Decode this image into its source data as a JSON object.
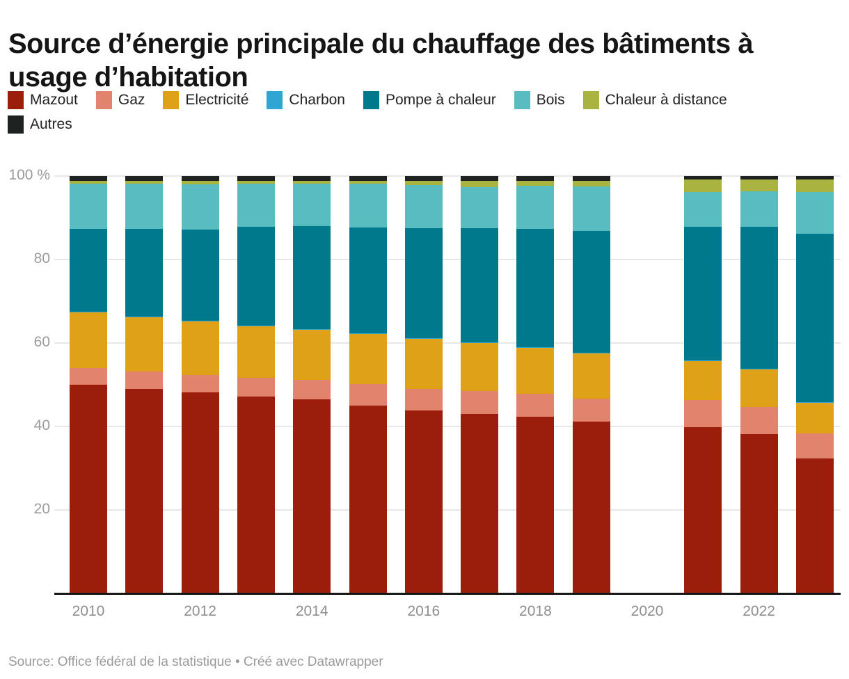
{
  "header": {
    "title_lines": [
      "Source d’énergie principale du chauffage des bâtiments à",
      "usage d’habitation"
    ]
  },
  "chart_data": {
    "type": "bar",
    "stacked": true,
    "unit": "%",
    "title": "Source d’énergie principale du chauffage des bâtiments à usage d’habitation",
    "categories": [
      "2010",
      "2011",
      "2012",
      "2013",
      "2014",
      "2015",
      "2016",
      "2017",
      "2018",
      "2019",
      "2020",
      "2021",
      "2022",
      "2023"
    ],
    "series": [
      {
        "name": "Mazout",
        "color": "#9b1e0d",
        "values": [
          50.0,
          49.0,
          48.1,
          47.2,
          46.5,
          45.0,
          43.9,
          43.0,
          42.3,
          41.2,
          null,
          39.8,
          38.2,
          32.4
        ]
      },
      {
        "name": "Gaz",
        "color": "#e2836e",
        "values": [
          4.0,
          4.2,
          4.2,
          4.5,
          4.6,
          5.1,
          5.1,
          5.5,
          5.5,
          5.4,
          null,
          6.5,
          6.4,
          6.0
        ]
      },
      {
        "name": "Electricité",
        "color": "#dfa118",
        "values": [
          13.3,
          12.9,
          12.9,
          12.3,
          12.1,
          12.0,
          12.0,
          11.5,
          11.1,
          11.0,
          null,
          9.4,
          9.1,
          7.4
        ]
      },
      {
        "name": "Charbon",
        "color": "#2fa5d3",
        "values": [
          0.2,
          0.2,
          0.2,
          0.2,
          0.2,
          0.2,
          0.2,
          0.1,
          0.1,
          0.1,
          null,
          0.1,
          0.1,
          0.1
        ]
      },
      {
        "name": "Pompe à chaleur",
        "color": "#00798c",
        "values": [
          19.9,
          21.1,
          21.8,
          23.7,
          24.6,
          25.4,
          26.3,
          27.4,
          28.4,
          29.2,
          null,
          32.1,
          34.0,
          40.2
        ]
      },
      {
        "name": "Bois",
        "color": "#58bcc1",
        "values": [
          10.8,
          10.8,
          10.8,
          10.3,
          10.2,
          10.4,
          10.4,
          9.9,
          10.2,
          10.6,
          null,
          8.3,
          8.5,
          10.0
        ]
      },
      {
        "name": "Chaleur à distance",
        "color": "#a9b440",
        "values": [
          0.7,
          0.7,
          0.9,
          0.7,
          0.7,
          0.8,
          1.0,
          1.4,
          1.3,
          1.4,
          null,
          2.9,
          2.8,
          3.0
        ]
      },
      {
        "name": "Autres",
        "color": "#1e2321",
        "values": [
          1.1,
          1.1,
          1.1,
          1.1,
          1.1,
          1.1,
          1.1,
          1.2,
          1.1,
          1.1,
          null,
          0.9,
          0.9,
          0.9
        ]
      }
    ],
    "ylim": [
      0,
      100
    ],
    "y_ticks": [
      {
        "value": 100,
        "label": "100 %"
      },
      {
        "value": 80,
        "label": "80"
      },
      {
        "value": 60,
        "label": "60"
      },
      {
        "value": 40,
        "label": "40"
      },
      {
        "value": 20,
        "label": "20"
      }
    ],
    "x_tick_labels": [
      "2010",
      "2012",
      "2014",
      "2016",
      "2018",
      "2020",
      "2022"
    ],
    "grid": true,
    "legend_position": "top"
  },
  "footer": {
    "source_text": "Source: Office fédéral de la statistique • Créé avec Datawrapper"
  }
}
